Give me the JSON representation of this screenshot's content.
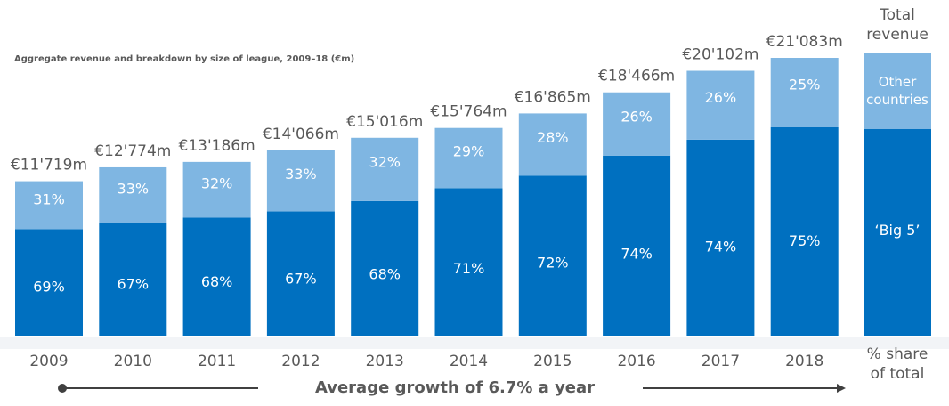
{
  "chart_data": {
    "type": "stacked-bar",
    "subtitle": "Aggregate revenue and breakdown by size of league, 2009–18 (€m)",
    "categories": [
      "2009",
      "2010",
      "2011",
      "2012",
      "2013",
      "2014",
      "2015",
      "2016",
      "2017",
      "2018"
    ],
    "totals": {
      "values": [
        11719,
        12774,
        13186,
        14066,
        15016,
        15764,
        16865,
        18466,
        20102,
        21083
      ],
      "value_labels": [
        "€11'719m",
        "€12'774m",
        "€13'186m",
        "€14'066m",
        "€15'016m",
        "€15'764m",
        "€16'865m",
        "€18'466m",
        "€20'102m",
        "€21'083m"
      ]
    },
    "series": [
      {
        "name": "‘Big 5’",
        "color": "#0070c0",
        "values": [
          69,
          67,
          68,
          67,
          68,
          71,
          72,
          74,
          74,
          75
        ],
        "value_labels": [
          "69%",
          "67%",
          "68%",
          "67%",
          "68%",
          "71%",
          "72%",
          "74%",
          "74%",
          "75%"
        ]
      },
      {
        "name": "Other countries",
        "color": "#7fb6e2",
        "values": [
          31,
          33,
          32,
          33,
          32,
          29,
          28,
          26,
          26,
          25
        ],
        "value_labels": [
          "31%",
          "33%",
          "32%",
          "33%",
          "32%",
          "29%",
          "28%",
          "26%",
          "26%",
          "25%"
        ]
      }
    ],
    "legend_title": "Total revenue",
    "share_label": "% share of total",
    "annotation": "Average growth of 6.7% a year"
  }
}
